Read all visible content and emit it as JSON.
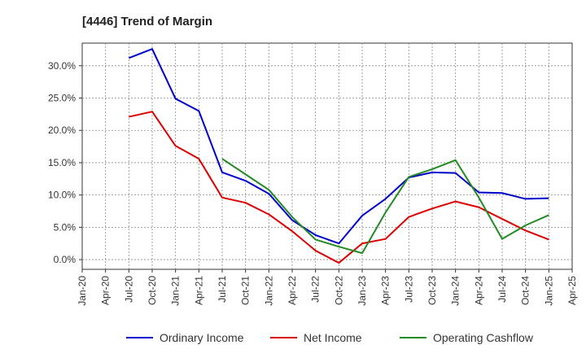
{
  "chart_data": {
    "type": "line",
    "title": "[4446]  Trend of Margin",
    "xlabel": "",
    "ylabel": "",
    "x": [
      "Jan-20",
      "Apr-20",
      "Jul-20",
      "Oct-20",
      "Jan-21",
      "Apr-21",
      "Jul-21",
      "Oct-21",
      "Jan-22",
      "Apr-22",
      "Jul-22",
      "Oct-22",
      "Jan-23",
      "Apr-23",
      "Jul-23",
      "Oct-23",
      "Jan-24",
      "Apr-24",
      "Jul-24",
      "Oct-24",
      "Jan-25",
      "Apr-25"
    ],
    "ylim": [
      -1.5,
      33.5
    ],
    "yticks": [
      0,
      5,
      10,
      15,
      20,
      25,
      30
    ],
    "ytick_labels": [
      "0.0%",
      "5.0%",
      "10.0%",
      "15.0%",
      "20.0%",
      "25.0%",
      "30.0%"
    ],
    "grid": true,
    "legend_position": "bottom",
    "series": [
      {
        "name": "Ordinary Income",
        "color": "#0000cc",
        "values": [
          null,
          null,
          31.2,
          32.6,
          24.9,
          23.0,
          13.5,
          12.2,
          10.2,
          6.1,
          3.8,
          2.5,
          6.8,
          9.4,
          12.7,
          13.5,
          13.4,
          10.4,
          10.3,
          9.4,
          9.5,
          null
        ]
      },
      {
        "name": "Net Income",
        "color": "#dd0000",
        "values": [
          null,
          null,
          22.1,
          22.9,
          17.6,
          15.6,
          9.6,
          8.8,
          7.0,
          4.4,
          1.4,
          -0.5,
          2.5,
          3.2,
          6.6,
          7.9,
          9.0,
          8.1,
          6.3,
          4.5,
          3.1,
          null
        ]
      },
      {
        "name": "Operating Cashflow",
        "color": "#228b22",
        "values": [
          null,
          null,
          null,
          null,
          null,
          null,
          15.6,
          13.2,
          10.8,
          6.6,
          3.1,
          2.0,
          1.0,
          7.3,
          12.8,
          14.0,
          15.4,
          9.6,
          3.2,
          5.3,
          6.9,
          null
        ]
      }
    ]
  }
}
